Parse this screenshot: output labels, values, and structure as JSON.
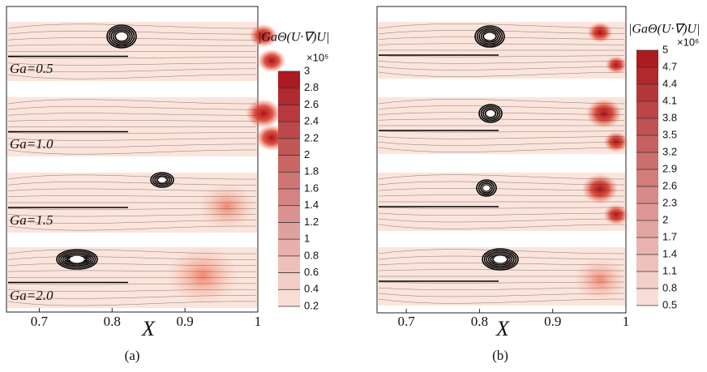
{
  "chart_data": [
    {
      "type": "contour",
      "caption": "(a)",
      "xlabel": "X",
      "xlim": [
        0.655,
        1
      ],
      "xticks": [
        0.7,
        0.8,
        0.9,
        1
      ],
      "panel_labels": [
        "Ga=0.5",
        "Ga=1.0",
        "Ga=1.5",
        "Ga=2.0"
      ],
      "colorbar_title": "|GaΘ(U·∇)U|",
      "colorbar_multiplier": "×10⁵",
      "clim": [
        0.2,
        3
      ],
      "cticks": [
        0.2,
        0.4,
        0.6,
        0.8,
        1,
        1.2,
        1.4,
        1.6,
        1.8,
        2,
        2.2,
        2.4,
        2.6,
        2.8,
        3
      ],
      "colormap": [
        "#fbe4dc",
        "#a8141a"
      ]
    },
    {
      "type": "contour",
      "caption": "(b)",
      "xlabel": "X",
      "xlim": [
        0.66,
        1
      ],
      "xticks": [
        0.7,
        0.8,
        0.9,
        1
      ],
      "colorbar_title": "|GaΘ(U·∇)U|",
      "colorbar_multiplier": "×10⁶",
      "clim": [
        0.5,
        5
      ],
      "cticks": [
        0.5,
        0.8,
        1.1,
        1.4,
        1.7,
        2,
        2.3,
        2.6,
        2.9,
        3.2,
        3.5,
        3.8,
        4.1,
        4.4,
        4.7,
        5
      ],
      "colormap": [
        "#fbe4dc",
        "#a8141a"
      ]
    }
  ]
}
